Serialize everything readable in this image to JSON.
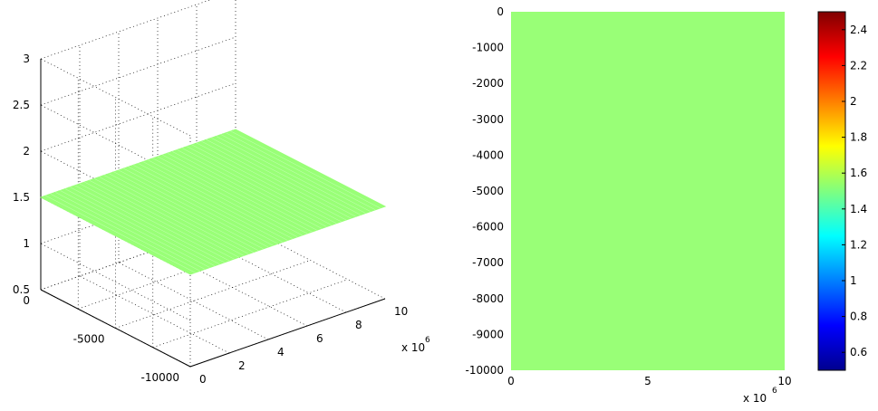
{
  "chart_data": [
    {
      "type": "surface",
      "z_value": 1.5,
      "surface_color": "#99ff77",
      "x_ticks": [
        "0",
        "2",
        "4",
        "6",
        "8",
        "10"
      ],
      "x_multiplier": "x 10",
      "x_multiplier_exp": "6",
      "y_ticks": [
        "0",
        "-5000",
        "-10000"
      ],
      "z_ticks": [
        "0.5",
        "1",
        "1.5",
        "2",
        "2.5",
        "3"
      ],
      "xlim": [
        0,
        10
      ],
      "ylim": [
        -10000,
        0
      ],
      "zlim": [
        0.5,
        3
      ],
      "grid": true
    },
    {
      "type": "heatmap",
      "value": 1.5,
      "fill_color": "#99ff77",
      "x_ticks": [
        "0",
        "5",
        "10"
      ],
      "x_multiplier": "x 10",
      "x_multiplier_exp": "6",
      "y_ticks": [
        "0",
        "-1000",
        "-2000",
        "-3000",
        "-4000",
        "-5000",
        "-6000",
        "-7000",
        "-8000",
        "-9000",
        "-10000"
      ],
      "xlim": [
        0,
        10
      ],
      "ylim": [
        -10000,
        0
      ]
    }
  ],
  "colorbar": {
    "ticks": [
      "0.6",
      "0.8",
      "1",
      "1.2",
      "1.4",
      "1.6",
      "1.8",
      "2",
      "2.2",
      "2.4"
    ],
    "range": [
      0.5,
      2.5
    ],
    "colormap": "jet"
  }
}
